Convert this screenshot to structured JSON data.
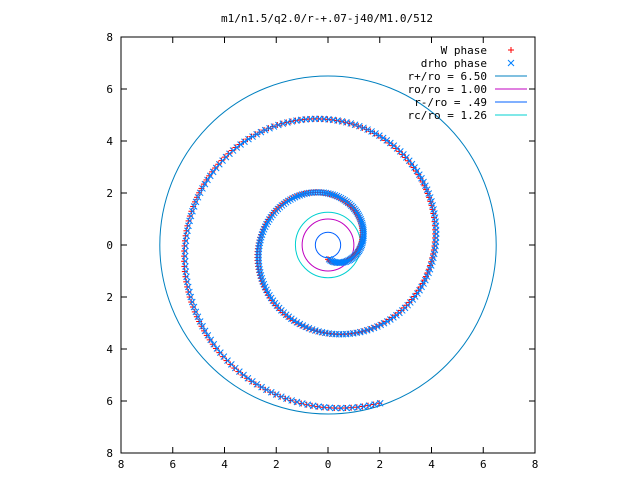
{
  "chart_data": {
    "type": "scatter",
    "title": "m1/n1.5/q2.0/r-+.07-j40/M1.0/512",
    "xlabel": "",
    "ylabel": "",
    "xlim": [
      -8,
      8
    ],
    "ylim": [
      -8,
      8
    ],
    "x_ticks": [
      -8,
      -6,
      -4,
      -2,
      0,
      2,
      4,
      6,
      8
    ],
    "y_ticks": [
      -8,
      -6,
      -4,
      -2,
      0,
      2,
      4,
      6,
      8
    ],
    "x_tick_labels": [
      "8",
      "6",
      "4",
      "2",
      "0",
      "2",
      "4",
      "6",
      "8"
    ],
    "y_tick_labels": [
      "8",
      "6",
      "4",
      "2",
      "0",
      "2",
      "4",
      "6",
      "8"
    ],
    "grid": false,
    "legend_position": "top-right",
    "point_series": [
      {
        "name": "W phase",
        "marker": "plus",
        "color": "#ff0000",
        "spiral": {
          "r_start": 0.55,
          "r_end": 6.4,
          "theta_start_deg": 270,
          "turns": 2.05,
          "direction": "ccw"
        }
      },
      {
        "name": "drho phase",
        "marker": "cross",
        "color": "#0080ff",
        "spiral": {
          "r_start": 0.55,
          "r_end": 6.4,
          "theta_start_deg": 270,
          "turns": 2.05,
          "direction": "ccw"
        }
      }
    ],
    "circles": [
      {
        "name": "r+/ro = 6.50",
        "radius": 6.5,
        "color": "#0080c0"
      },
      {
        "name": "ro/ro = 1.00",
        "radius": 1.0,
        "color": "#c000c0"
      },
      {
        "name": "r-/ro = .49",
        "radius": 0.49,
        "color": "#0060ff"
      },
      {
        "name": "rc/ro = 1.26",
        "radius": 1.26,
        "color": "#00d0d0"
      }
    ]
  }
}
